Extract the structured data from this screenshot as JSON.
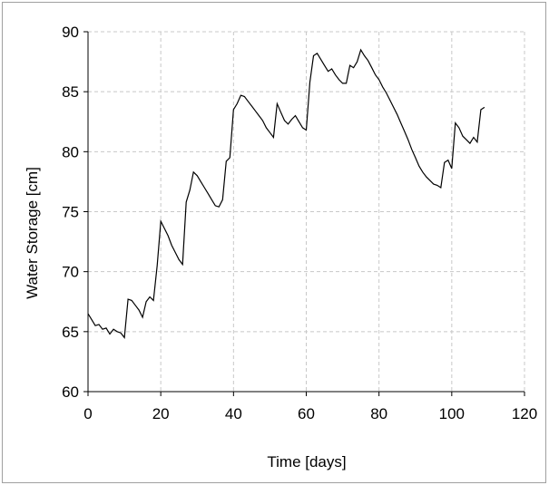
{
  "chart_data": {
    "type": "line",
    "xlabel": "Time [days]",
    "ylabel": "Water Storage [cm]",
    "xlim": [
      0,
      120
    ],
    "ylim": [
      60,
      90
    ],
    "xticks": [
      0,
      20,
      40,
      60,
      80,
      100,
      120
    ],
    "yticks": [
      60,
      65,
      70,
      75,
      80,
      85,
      90
    ],
    "xtick_labels": [
      "0",
      "20",
      "40",
      "60",
      "80",
      "100",
      "120"
    ],
    "ytick_labels": [
      "60",
      "65",
      "70",
      "75",
      "80",
      "85",
      "90"
    ],
    "grid": true,
    "line_color": "#000000",
    "grid_color": "#c8c8c8",
    "series": [
      {
        "x": [
          0,
          1,
          2,
          3,
          4,
          5,
          6,
          7,
          8,
          9,
          10,
          11,
          12,
          13,
          14,
          15,
          16,
          17,
          18,
          19,
          20,
          21,
          22,
          23,
          24,
          25,
          26,
          27,
          28,
          29,
          30,
          31,
          32,
          33,
          34,
          35,
          36,
          37,
          38,
          39,
          40,
          41,
          42,
          43,
          44,
          45,
          46,
          47,
          48,
          49,
          50,
          51,
          52,
          53,
          54,
          55,
          56,
          57,
          58,
          59,
          60,
          61,
          62,
          63,
          64,
          65,
          66,
          67,
          68,
          69,
          70,
          71,
          72,
          73,
          74,
          75,
          76,
          77,
          78,
          79,
          80,
          81,
          82,
          83,
          84,
          85,
          86,
          87,
          88,
          89,
          90,
          91,
          92,
          93,
          94,
          95,
          96,
          97,
          98,
          99,
          100,
          101,
          102,
          103,
          104,
          105,
          106,
          107,
          108,
          109
        ],
        "y": [
          66.5,
          66.0,
          65.5,
          65.6,
          65.2,
          65.3,
          64.8,
          65.2,
          65.0,
          64.9,
          64.5,
          67.7,
          67.6,
          67.2,
          66.8,
          66.2,
          67.5,
          67.9,
          67.6,
          70.5,
          74.2,
          73.6,
          73.0,
          72.2,
          71.6,
          71.0,
          70.6,
          75.8,
          76.8,
          78.3,
          78.0,
          77.5,
          77.0,
          76.5,
          76.0,
          75.5,
          75.4,
          76.0,
          79.2,
          79.5,
          83.5,
          84.0,
          84.7,
          84.6,
          84.2,
          83.8,
          83.4,
          83.0,
          82.6,
          82.0,
          81.6,
          81.2,
          84.0,
          83.3,
          82.6,
          82.3,
          82.7,
          83.0,
          82.5,
          82.0,
          81.8,
          85.8,
          88.0,
          88.2,
          87.7,
          87.2,
          86.7,
          86.9,
          86.4,
          86.0,
          85.7,
          85.7,
          87.2,
          87.0,
          87.5,
          88.5,
          88.0,
          87.6,
          87.0,
          86.4,
          86.0,
          85.4,
          84.9,
          84.3,
          83.7,
          83.1,
          82.4,
          81.7,
          81.0,
          80.2,
          79.5,
          78.8,
          78.3,
          77.9,
          77.6,
          77.3,
          77.2,
          77.0,
          79.1,
          79.3,
          78.6,
          82.4,
          82.0,
          81.3,
          81.0,
          80.7,
          81.2,
          80.8,
          83.5,
          83.7
        ]
      }
    ]
  }
}
